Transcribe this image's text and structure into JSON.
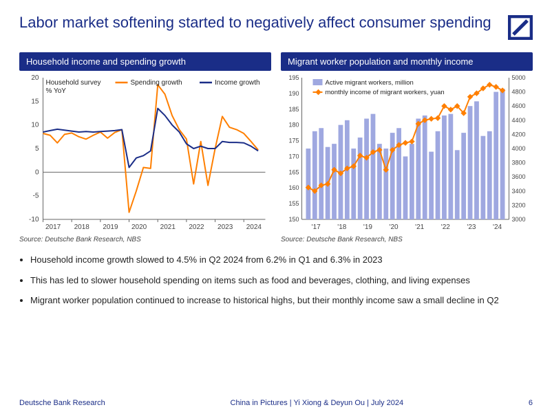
{
  "title": "Labor market softening started to negatively affect consumer spending",
  "brand": "Deutsche Bank",
  "brand_sub": "Research",
  "footer_center": "China in Pictures | Yi Xiong & Deyun Ou | July 2024",
  "page_number": "6",
  "logo": {
    "border_color": "#1a2d87",
    "slash_color": "#1a2d87",
    "bg": "#ffffff"
  },
  "colors": {
    "navy": "#1a2d87",
    "orange": "#ff7f00",
    "bar_fill": "#9fa8e0",
    "axis": "#666666",
    "grid": "#dddddd",
    "tick_text": "#444444"
  },
  "chart1": {
    "header": "Household income and spending growth",
    "source": "Source: Deutsche Bank Research, NBS",
    "y_label_top": "Household survey",
    "y_label_sub": "% YoY",
    "legend": [
      {
        "label": "Spending growth",
        "color": "#ff7f00"
      },
      {
        "label": "Income growth",
        "color": "#1a2d87"
      }
    ],
    "x_labels": [
      "2017",
      "2018",
      "2019",
      "2020",
      "2021",
      "2022",
      "2023",
      "2024"
    ],
    "x_domain": [
      2017,
      2024.75
    ],
    "y_domain": [
      -10,
      20
    ],
    "y_ticks": [
      -10,
      -5,
      0,
      5,
      10,
      15,
      20
    ],
    "spending": {
      "color": "#ff7f00",
      "line_width": 2,
      "points": [
        [
          2017.0,
          8.2
        ],
        [
          2017.25,
          7.8
        ],
        [
          2017.5,
          6.2
        ],
        [
          2017.75,
          8.0
        ],
        [
          2018.0,
          8.3
        ],
        [
          2018.25,
          7.5
        ],
        [
          2018.5,
          7.0
        ],
        [
          2018.75,
          7.8
        ],
        [
          2019.0,
          8.5
        ],
        [
          2019.25,
          7.2
        ],
        [
          2019.5,
          8.4
        ],
        [
          2019.75,
          9.0
        ],
        [
          2020.0,
          -8.5
        ],
        [
          2020.25,
          -4.0
        ],
        [
          2020.5,
          1.0
        ],
        [
          2020.75,
          0.8
        ],
        [
          2021.0,
          18.5
        ],
        [
          2021.25,
          16.5
        ],
        [
          2021.5,
          12.0
        ],
        [
          2021.75,
          9.0
        ],
        [
          2022.0,
          7.0
        ],
        [
          2022.25,
          -2.5
        ],
        [
          2022.5,
          6.5
        ],
        [
          2022.75,
          -2.8
        ],
        [
          2023.0,
          5.0
        ],
        [
          2023.25,
          11.8
        ],
        [
          2023.5,
          9.5
        ],
        [
          2023.75,
          9.0
        ],
        [
          2024.0,
          8.2
        ],
        [
          2024.25,
          6.5
        ],
        [
          2024.5,
          4.7
        ]
      ]
    },
    "income": {
      "color": "#1a2d87",
      "line_width": 2,
      "points": [
        [
          2017.0,
          8.5
        ],
        [
          2017.25,
          8.8
        ],
        [
          2017.5,
          9.1
        ],
        [
          2017.75,
          8.9
        ],
        [
          2018.0,
          8.7
        ],
        [
          2018.25,
          8.5
        ],
        [
          2018.5,
          8.6
        ],
        [
          2018.75,
          8.5
        ],
        [
          2019.0,
          8.6
        ],
        [
          2019.25,
          8.7
        ],
        [
          2019.5,
          8.8
        ],
        [
          2019.75,
          9.0
        ],
        [
          2020.0,
          1.0
        ],
        [
          2020.25,
          3.0
        ],
        [
          2020.5,
          3.5
        ],
        [
          2020.75,
          4.5
        ],
        [
          2021.0,
          13.5
        ],
        [
          2021.25,
          12.0
        ],
        [
          2021.5,
          10.0
        ],
        [
          2021.75,
          8.5
        ],
        [
          2022.0,
          6.0
        ],
        [
          2022.25,
          5.0
        ],
        [
          2022.5,
          5.5
        ],
        [
          2022.75,
          5.0
        ],
        [
          2023.0,
          5.0
        ],
        [
          2023.25,
          6.5
        ],
        [
          2023.5,
          6.3
        ],
        [
          2023.75,
          6.3
        ],
        [
          2024.0,
          6.2
        ],
        [
          2024.25,
          5.5
        ],
        [
          2024.5,
          4.5
        ]
      ]
    }
  },
  "chart2": {
    "header": "Migrant worker population and monthly income",
    "source": "Source: Deutsche Bank Research, NBS",
    "legend": [
      {
        "label": "Active migrant workers, million",
        "type": "bar",
        "color": "#9fa8e0"
      },
      {
        "label": "monthly income of migrant workers, yuan",
        "type": "line",
        "color": "#ff7f00"
      }
    ],
    "x_labels": [
      "'17",
      "'18",
      "'19",
      "'20",
      "'21",
      "'22",
      "'23",
      "'24"
    ],
    "x_positions": [
      2017,
      2018,
      2019,
      2020,
      2021,
      2022,
      2023,
      2024
    ],
    "y_left_domain": [
      150,
      195
    ],
    "y_left_ticks": [
      150,
      155,
      160,
      165,
      170,
      175,
      180,
      185,
      190,
      195
    ],
    "y_right_domain": [
      3000,
      5000
    ],
    "y_right_ticks": [
      3000,
      3200,
      3400,
      3600,
      3800,
      4000,
      4200,
      4400,
      4600,
      4800,
      5000
    ],
    "bars": {
      "color": "#9fa8e0",
      "width": 0.18,
      "points": [
        [
          2017.0,
          172.5
        ],
        [
          2017.25,
          178
        ],
        [
          2017.5,
          179
        ],
        [
          2017.75,
          173
        ],
        [
          2018.0,
          174
        ],
        [
          2018.25,
          180
        ],
        [
          2018.5,
          181.5
        ],
        [
          2018.75,
          172.5
        ],
        [
          2019.0,
          176
        ],
        [
          2019.25,
          182
        ],
        [
          2019.5,
          183.5
        ],
        [
          2019.75,
          174
        ],
        [
          2020.0,
          172.5
        ],
        [
          2020.25,
          177.5
        ],
        [
          2020.5,
          179
        ],
        [
          2020.75,
          170
        ],
        [
          2021.0,
          174
        ],
        [
          2021.25,
          182
        ],
        [
          2021.5,
          183
        ],
        [
          2021.75,
          171.5
        ],
        [
          2022.0,
          178
        ],
        [
          2022.25,
          183
        ],
        [
          2022.5,
          183.5
        ],
        [
          2022.75,
          172
        ],
        [
          2023.0,
          177.5
        ],
        [
          2023.25,
          186
        ],
        [
          2023.5,
          187.5
        ],
        [
          2023.75,
          176.5
        ],
        [
          2024.0,
          178
        ],
        [
          2024.25,
          190.5
        ],
        [
          2024.5,
          191.5
        ]
      ]
    },
    "line": {
      "color": "#ff7f00",
      "line_width": 2,
      "marker_size": 3,
      "points": [
        [
          2017.0,
          3450
        ],
        [
          2017.25,
          3400
        ],
        [
          2017.5,
          3480
        ],
        [
          2017.75,
          3500
        ],
        [
          2018.0,
          3700
        ],
        [
          2018.25,
          3650
        ],
        [
          2018.5,
          3720
        ],
        [
          2018.75,
          3750
        ],
        [
          2019.0,
          3900
        ],
        [
          2019.25,
          3870
        ],
        [
          2019.5,
          3950
        ],
        [
          2019.75,
          3980
        ],
        [
          2020.0,
          3700
        ],
        [
          2020.25,
          3980
        ],
        [
          2020.5,
          4050
        ],
        [
          2020.75,
          4080
        ],
        [
          2021.0,
          4100
        ],
        [
          2021.25,
          4350
        ],
        [
          2021.5,
          4400
        ],
        [
          2021.75,
          4420
        ],
        [
          2022.0,
          4430
        ],
        [
          2022.25,
          4600
        ],
        [
          2022.5,
          4550
        ],
        [
          2022.75,
          4600
        ],
        [
          2023.0,
          4500
        ],
        [
          2023.25,
          4730
        ],
        [
          2023.5,
          4780
        ],
        [
          2023.75,
          4850
        ],
        [
          2024.0,
          4900
        ],
        [
          2024.25,
          4870
        ],
        [
          2024.5,
          4820
        ]
      ]
    }
  },
  "bullets": [
    "Household income growth slowed to 4.5% in Q2 2024 from 6.2% in Q1 and 6.3% in 2023",
    "This has led to slower household spending on items such as food and beverages, clothing, and living expenses",
    "Migrant worker population continued to increase to historical highs, but their monthly income saw a small decline in Q2"
  ]
}
